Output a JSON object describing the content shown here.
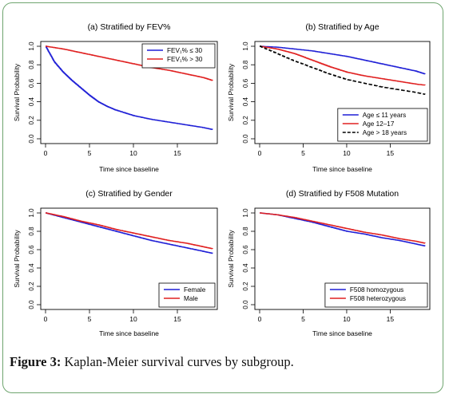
{
  "figure": {
    "caption_label": "Figure 3:",
    "caption_text": " Kaplan-Meier survival curves by subgroup."
  },
  "chart_data": [
    {
      "type": "line",
      "title": "(a) Stratified by FEV%",
      "xlabel": "Time since baseline",
      "ylabel": "Survival Probability",
      "xlim": [
        0,
        19
      ],
      "ylim": [
        0,
        1
      ],
      "xticks": [
        0,
        5,
        10,
        15
      ],
      "yticks": [
        0.0,
        0.2,
        0.4,
        0.6,
        0.8,
        1.0
      ],
      "legend_position": "top-right",
      "series": [
        {
          "name": "FEV₁% ≤ 30",
          "color": "#1f1fd6",
          "dash": "solid",
          "x": [
            0,
            1,
            2,
            3,
            4,
            5,
            6,
            7,
            8,
            10,
            12,
            14,
            16,
            18,
            19
          ],
          "y": [
            1.0,
            0.83,
            0.72,
            0.63,
            0.55,
            0.47,
            0.4,
            0.35,
            0.31,
            0.25,
            0.21,
            0.18,
            0.15,
            0.12,
            0.1
          ]
        },
        {
          "name": "FEV₁% > 30",
          "color": "#e02020",
          "dash": "solid",
          "x": [
            0,
            2,
            4,
            6,
            8,
            10,
            12,
            14,
            16,
            18,
            19
          ],
          "y": [
            1.0,
            0.97,
            0.93,
            0.89,
            0.85,
            0.81,
            0.77,
            0.74,
            0.7,
            0.66,
            0.63
          ]
        }
      ]
    },
    {
      "type": "line",
      "title": "(b) Stratified by Age",
      "xlabel": "Time since baseline",
      "ylabel": "Survival Probability",
      "xlim": [
        0,
        19
      ],
      "ylim": [
        0,
        1
      ],
      "xticks": [
        0,
        5,
        10,
        15
      ],
      "yticks": [
        0.0,
        0.2,
        0.4,
        0.6,
        0.8,
        1.0
      ],
      "legend_position": "bottom-right",
      "series": [
        {
          "name": "Age ≤ 11 years",
          "color": "#1f1fd6",
          "dash": "solid",
          "x": [
            0,
            2,
            4,
            6,
            8,
            10,
            12,
            14,
            16,
            18,
            19
          ],
          "y": [
            1.0,
            0.99,
            0.97,
            0.95,
            0.92,
            0.89,
            0.85,
            0.81,
            0.77,
            0.73,
            0.7
          ]
        },
        {
          "name": "Age 12–17",
          "color": "#e02020",
          "dash": "solid",
          "x": [
            0,
            2,
            4,
            6,
            8,
            10,
            12,
            14,
            16,
            18,
            19
          ],
          "y": [
            1.0,
            0.97,
            0.92,
            0.85,
            0.78,
            0.72,
            0.68,
            0.65,
            0.62,
            0.59,
            0.58
          ]
        },
        {
          "name": "Age > 18 years",
          "color": "#000000",
          "dash": "dashed",
          "x": [
            0,
            2,
            4,
            6,
            8,
            10,
            12,
            14,
            16,
            18,
            19
          ],
          "y": [
            1.0,
            0.92,
            0.84,
            0.77,
            0.7,
            0.64,
            0.6,
            0.56,
            0.53,
            0.5,
            0.48
          ]
        }
      ]
    },
    {
      "type": "line",
      "title": "(c) Stratified by Gender",
      "xlabel": "Time since baseline",
      "ylabel": "Survival Probability",
      "xlim": [
        0,
        19
      ],
      "ylim": [
        0,
        1
      ],
      "xticks": [
        0,
        5,
        10,
        15
      ],
      "yticks": [
        0.0,
        0.2,
        0.4,
        0.6,
        0.8,
        1.0
      ],
      "legend_position": "bottom-right",
      "series": [
        {
          "name": "Female",
          "color": "#1f1fd6",
          "dash": "solid",
          "x": [
            0,
            2,
            4,
            6,
            8,
            10,
            12,
            14,
            16,
            18,
            19
          ],
          "y": [
            1.0,
            0.95,
            0.9,
            0.85,
            0.8,
            0.75,
            0.7,
            0.66,
            0.62,
            0.58,
            0.56
          ]
        },
        {
          "name": "Male",
          "color": "#e02020",
          "dash": "solid",
          "x": [
            0,
            2,
            4,
            6,
            8,
            10,
            12,
            14,
            16,
            18,
            19
          ],
          "y": [
            1.0,
            0.96,
            0.91,
            0.87,
            0.82,
            0.78,
            0.74,
            0.7,
            0.67,
            0.63,
            0.61
          ]
        }
      ]
    },
    {
      "type": "line",
      "title": "(d) Stratified by F508 Mutation",
      "xlabel": "Time since baseline",
      "ylabel": "Survival Probability",
      "xlim": [
        0,
        19
      ],
      "ylim": [
        0,
        1
      ],
      "xticks": [
        0,
        5,
        10,
        15
      ],
      "yticks": [
        0.0,
        0.2,
        0.4,
        0.6,
        0.8,
        1.0
      ],
      "legend_position": "bottom-right",
      "series": [
        {
          "name": "F508 homozygous",
          "color": "#1f1fd6",
          "dash": "solid",
          "x": [
            0,
            2,
            4,
            6,
            8,
            10,
            12,
            14,
            16,
            18,
            19
          ],
          "y": [
            1.0,
            0.98,
            0.94,
            0.9,
            0.85,
            0.8,
            0.77,
            0.73,
            0.7,
            0.66,
            0.64
          ]
        },
        {
          "name": "F508 heterozygous",
          "color": "#e02020",
          "dash": "solid",
          "x": [
            0,
            2,
            4,
            6,
            8,
            10,
            12,
            14,
            16,
            18,
            19
          ],
          "y": [
            1.0,
            0.98,
            0.95,
            0.91,
            0.87,
            0.83,
            0.79,
            0.76,
            0.72,
            0.69,
            0.67
          ]
        }
      ]
    }
  ]
}
